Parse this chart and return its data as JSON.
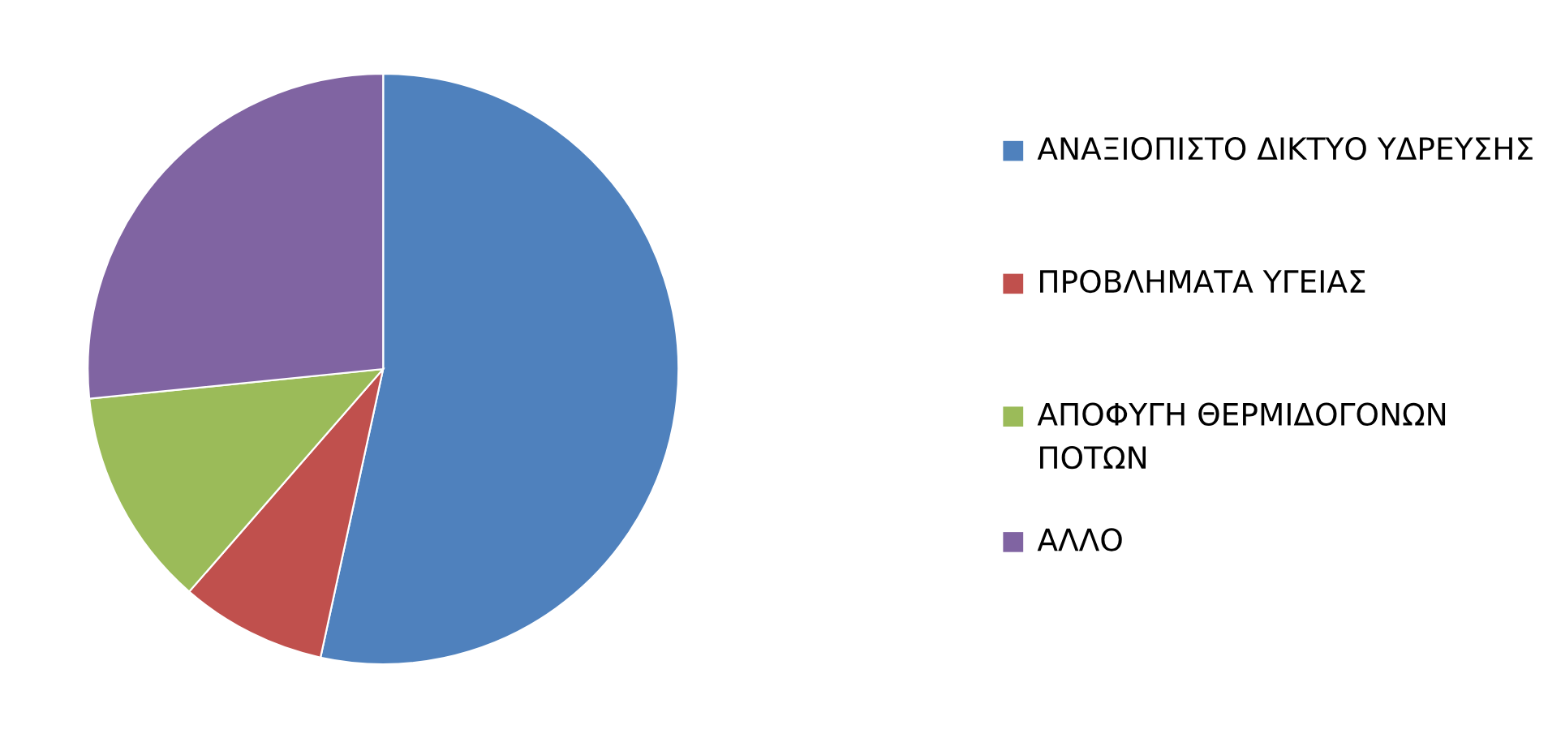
{
  "chart_data": {
    "type": "pie",
    "categories": [
      "ΑΝΑΞΙΟΠΙΣΤΟ ΔΙΚΤΥΟ ΥΔΡΕΥΣΗΣ",
      "ΠΡΟΒΛΗΜΑΤΑ ΥΓΕΙΑΣ",
      "ΑΠΟΦΥΓΗ ΘΕΡΜΙΔΟΓΟΝΩΝ ΠΟΤΩΝ",
      "ΑΛΛΟ"
    ],
    "values": [
      53.4,
      8.0,
      12.0,
      26.6
    ],
    "colors": [
      "#4f81bd",
      "#c0504d",
      "#9bbb59",
      "#8064a2"
    ],
    "legend": "right"
  }
}
